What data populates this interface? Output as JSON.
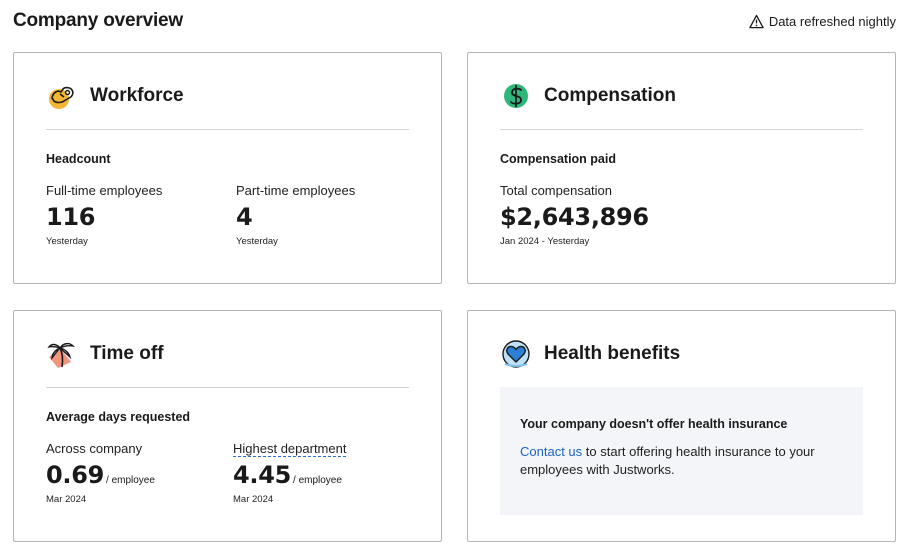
{
  "page": {
    "title": "Company overview",
    "refresh_note": "Data refreshed nightly"
  },
  "workforce": {
    "title": "Workforce",
    "icon": "workforce-icon",
    "subhead": "Headcount",
    "full_time": {
      "label": "Full-time employees",
      "value": "116",
      "date": "Yesterday"
    },
    "part_time": {
      "label": "Part-time employees",
      "value": "4",
      "date": "Yesterday"
    }
  },
  "compensation": {
    "title": "Compensation",
    "icon": "dollar-icon",
    "subhead": "Compensation paid",
    "total": {
      "label": "Total compensation",
      "value": "$2,643,896",
      "date": "Jan 2024 - Yesterday"
    }
  },
  "time_off": {
    "title": "Time off",
    "icon": "palm-tree-icon",
    "subhead": "Average days requested",
    "company": {
      "label": "Across company",
      "value": "0.69",
      "unit": "/ employee",
      "date": "Mar 2024"
    },
    "highest": {
      "label": "Highest department",
      "value": "4.45",
      "unit": "/ employee",
      "date": "Mar 2024"
    }
  },
  "health": {
    "title": "Health benefits",
    "icon": "heart-icon",
    "notice_title": "Your company doesn't offer health insurance",
    "link_text": "Contact us",
    "notice_text": " to start offering health insurance to your employees with Justworks."
  },
  "colors": {
    "accent_link": "#1d63c7",
    "border": "#b5b5b5",
    "notice_bg": "#f3f5f8"
  }
}
